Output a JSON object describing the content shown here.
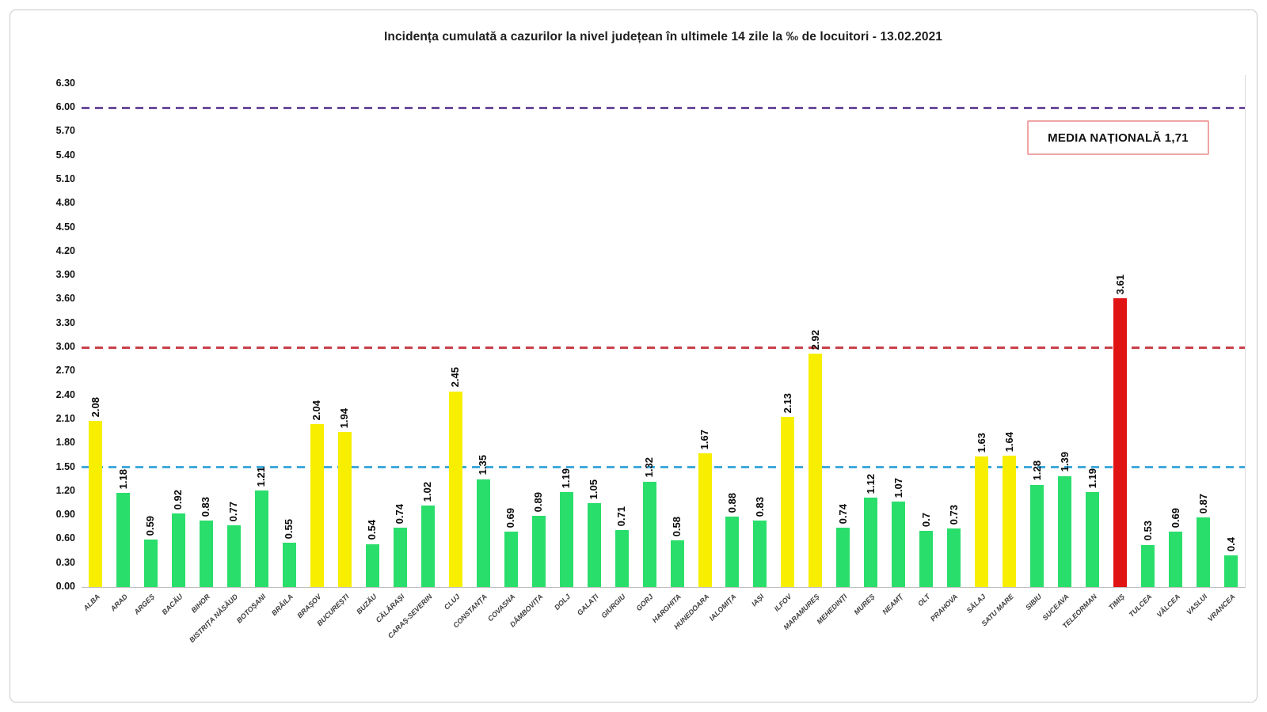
{
  "chart": {
    "title": "Incidența cumulată a cazurilor la nivel județean în ultimele 14 zile la ‰ de locuitori - 13.02.2021",
    "national_average_label": "MEDIA NAȚIONALĂ  1,71"
  },
  "chart_data": {
    "type": "bar",
    "title": "Incidența cumulată a cazurilor la nivel județean în ultimele 14 zile la ‰ de locuitori - 13.02.2021",
    "xlabel": "",
    "ylabel": "",
    "ylim": [
      0,
      6.3
    ],
    "ytick_step": 0.3,
    "ytick_labels": [
      "0.00",
      "0.30",
      "0.60",
      "0.90",
      "1.20",
      "1.50",
      "1.80",
      "2.10",
      "2.40",
      "2.70",
      "3.00",
      "3.30",
      "3.60",
      "3.90",
      "4.20",
      "4.50",
      "4.80",
      "5.10",
      "5.40",
      "5.70",
      "6.00",
      "6.30"
    ],
    "grid": false,
    "legend": {
      "text": "MEDIA NAȚIONALĂ  1,71",
      "position": "top-right",
      "border_color": "#f0a5a5"
    },
    "categories": [
      "ALBA",
      "ARAD",
      "ARGEȘ",
      "BACĂU",
      "BIHOR",
      "BISTRIȚA NĂSĂUD",
      "BOTOȘANI",
      "BRĂILA",
      "BRAȘOV",
      "BUCUREȘTI",
      "BUZĂU",
      "CĂLĂRAȘI",
      "CARAȘ-SEVERIN",
      "CLUJ",
      "CONSTANȚA",
      "COVASNA",
      "DÂMBOVIȚA",
      "DOLJ",
      "GALAȚI",
      "GIURGIU",
      "GORJ",
      "HARGHITA",
      "HUNEDOARA",
      "IALOMIȚA",
      "IAȘI",
      "ILFOV",
      "MARAMUREȘ",
      "MEHEDINȚI",
      "MUREȘ",
      "NEAMȚ",
      "OLT",
      "PRAHOVA",
      "SĂLAJ",
      "SATU MARE",
      "SIBIU",
      "SUCEAVA",
      "TELEORMAN",
      "TIMIȘ",
      "TULCEA",
      "VÂLCEA",
      "VASLUI",
      "VRANCEA"
    ],
    "values": [
      2.08,
      1.18,
      0.59,
      0.92,
      0.83,
      0.77,
      1.21,
      0.55,
      2.04,
      1.94,
      0.54,
      0.74,
      1.02,
      2.45,
      1.35,
      0.69,
      0.89,
      1.19,
      1.05,
      0.71,
      1.32,
      0.58,
      1.67,
      0.88,
      0.83,
      2.13,
      2.92,
      0.74,
      1.12,
      1.07,
      0.7,
      0.73,
      1.63,
      1.64,
      1.28,
      1.39,
      1.19,
      3.61,
      0.53,
      0.69,
      0.87,
      0.4
    ],
    "display_values": [
      "2.08",
      "1.18",
      "0.59",
      "0.92",
      "0.83",
      "0.77",
      "1.21",
      "0.55",
      "2.04",
      "1.94",
      "0.54",
      "0.74",
      "1.02",
      "2.45",
      "1.35",
      "0.69",
      "0.89",
      "1.19",
      "1.05",
      "0.71",
      "1.32",
      "0.58",
      "1.67",
      "0.88",
      "0.83",
      "2.13",
      "2.92",
      "0.74",
      "1.12",
      "1.07",
      "0.7",
      "0.73",
      "1.63",
      "1.64",
      "1.28",
      "1.39",
      "1.19",
      "3.61",
      "0.53",
      "0.69",
      "0.87",
      "0.4"
    ],
    "bar_colors": [
      "yellow",
      "green",
      "green",
      "green",
      "green",
      "green",
      "green",
      "green",
      "yellow",
      "yellow",
      "green",
      "green",
      "green",
      "yellow",
      "green",
      "green",
      "green",
      "green",
      "green",
      "green",
      "green",
      "green",
      "yellow",
      "green",
      "green",
      "yellow",
      "yellow",
      "green",
      "green",
      "green",
      "green",
      "green",
      "yellow",
      "yellow",
      "green",
      "green",
      "green",
      "red",
      "green",
      "green",
      "green",
      "green"
    ],
    "palette": {
      "green": "#2ade6b",
      "yellow": "#f8ef00",
      "red": "#e11414"
    },
    "thresholds": [
      {
        "value": 1.5,
        "color": "#41aadc",
        "name": "yellow-zone-threshold"
      },
      {
        "value": 3.0,
        "color": "#c8404a",
        "name": "red-zone-threshold"
      },
      {
        "value": 6.0,
        "color": "#6b4e9b",
        "name": "upper-threshold"
      }
    ]
  }
}
